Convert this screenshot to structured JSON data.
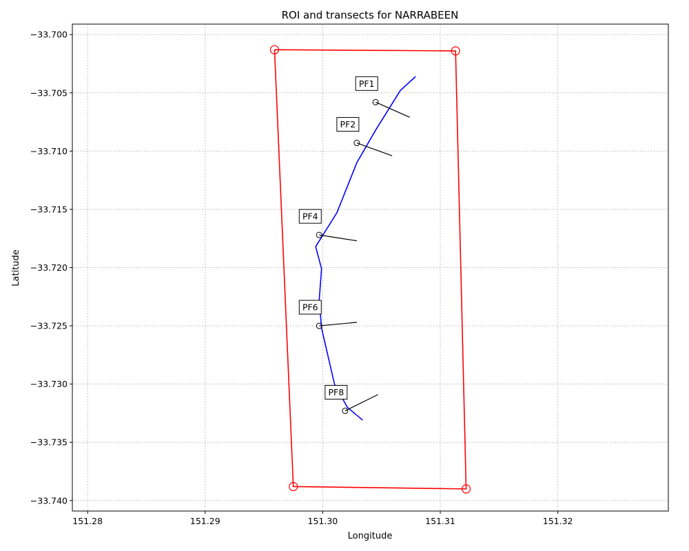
{
  "chart_data": {
    "type": "scatter",
    "title": "ROI and transects for NARRABEEN",
    "xlabel": "Longitude",
    "ylabel": "Latitude",
    "xlim": [
      151.2787,
      151.3294
    ],
    "ylim": [
      -33.7409,
      -33.6991
    ],
    "xticks": [
      151.28,
      151.29,
      151.3,
      151.31,
      151.32
    ],
    "xtick_labels": [
      "151.28",
      "151.29",
      "151.30",
      "151.31",
      "151.32"
    ],
    "yticks": [
      -33.7,
      -33.705,
      -33.71,
      -33.715,
      -33.72,
      -33.725,
      -33.73,
      -33.735,
      -33.74
    ],
    "ytick_labels": [
      "−33.700",
      "−33.705",
      "−33.710",
      "−33.715",
      "−33.720",
      "−33.725",
      "−33.730",
      "−33.735",
      "−33.740"
    ],
    "grid": true,
    "grid_style": "dotted",
    "roi": {
      "color": "#ff0000",
      "x": [
        151.2959,
        151.3113,
        151.3122,
        151.2975,
        151.2959
      ],
      "y": [
        -33.7013,
        -33.7014,
        -33.739,
        -33.7388,
        -33.7013
      ],
      "corners_x": [
        151.2959,
        151.3113,
        151.3122,
        151.2975
      ],
      "corners_y": [
        -33.7013,
        -33.7014,
        -33.739,
        -33.7388
      ]
    },
    "shoreline": {
      "color": "#0000ff",
      "x": [
        151.3079,
        151.3066,
        151.3045,
        151.3029,
        151.3012,
        151.2994,
        151.2999,
        151.2997,
        151.2999,
        151.301,
        151.3021,
        151.3034
      ],
      "y": [
        -33.7036,
        -33.7048,
        -33.7082,
        -33.711,
        -33.7153,
        -33.7182,
        -33.7201,
        -33.7228,
        -33.7252,
        -33.73,
        -33.732,
        -33.7331
      ]
    },
    "transects": [
      {
        "label": "PF1",
        "x": [
          151.3045,
          151.3074
        ],
        "y": [
          -33.7058,
          -33.7071
        ]
      },
      {
        "label": "PF2",
        "x": [
          151.3029,
          151.3059
        ],
        "y": [
          -33.7093,
          -33.7104
        ]
      },
      {
        "label": "PF4",
        "x": [
          151.2997,
          151.3029
        ],
        "y": [
          -33.7172,
          -33.7177
        ]
      },
      {
        "label": "PF6",
        "x": [
          151.2997,
          151.3029
        ],
        "y": [
          -33.725,
          -33.7247
        ]
      },
      {
        "label": "PF8",
        "x": [
          151.3019,
          151.3047
        ],
        "y": [
          -33.7323,
          -33.7309
        ]
      }
    ]
  }
}
